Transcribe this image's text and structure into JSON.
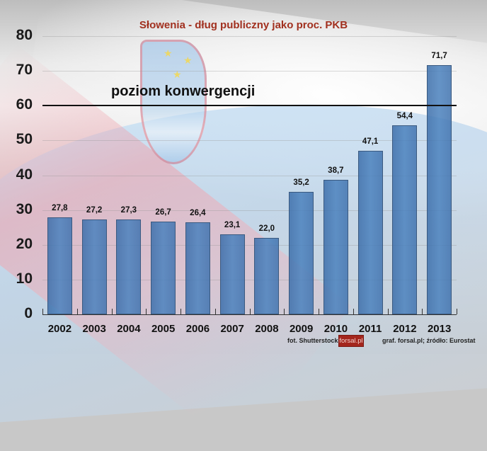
{
  "chart_data": {
    "type": "bar",
    "title": "Słowenia - dług publiczny jako proc. PKB",
    "xlabel": "",
    "ylabel": "",
    "categories": [
      "2002",
      "2003",
      "2004",
      "2005",
      "2006",
      "2007",
      "2008",
      "2009",
      "2010",
      "2011",
      "2012",
      "2013"
    ],
    "values": [
      27.8,
      27.2,
      27.3,
      26.7,
      26.4,
      23.1,
      22.0,
      35.2,
      38.7,
      47.1,
      54.4,
      71.7
    ],
    "value_labels": [
      "27,8",
      "27,2",
      "27,3",
      "26,7",
      "26,4",
      "23,1",
      "22,0",
      "35,2",
      "38,7",
      "47,1",
      "54,4",
      "71,7"
    ],
    "ylim": [
      0,
      80
    ],
    "yticks": [
      0,
      10,
      20,
      30,
      40,
      50,
      60,
      70,
      80
    ],
    "grid": true,
    "reference_line": {
      "value": 60,
      "label": "poziom konwergencji"
    },
    "bar_color": "#4a7fb8",
    "title_color": "#a1301f"
  },
  "credits": {
    "photo": "fot. Shutterstock",
    "logo": "forsal.pl",
    "source": "graf. forsal.pl;  źródło: Eurostat"
  }
}
